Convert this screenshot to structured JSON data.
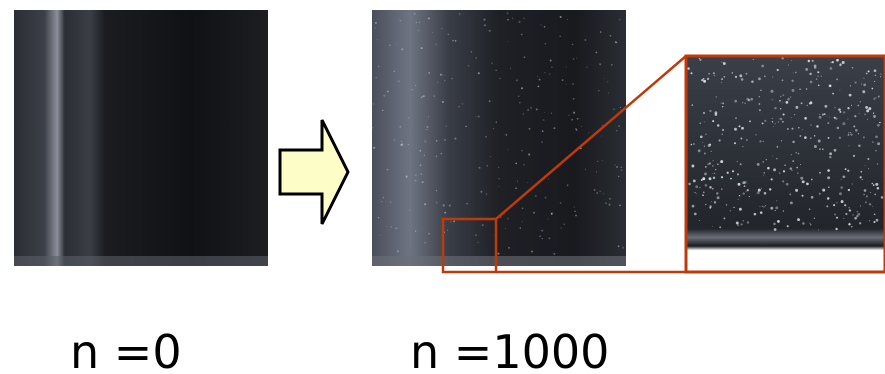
{
  "labels": {
    "before": "n =0",
    "after": "n =1000"
  }
}
